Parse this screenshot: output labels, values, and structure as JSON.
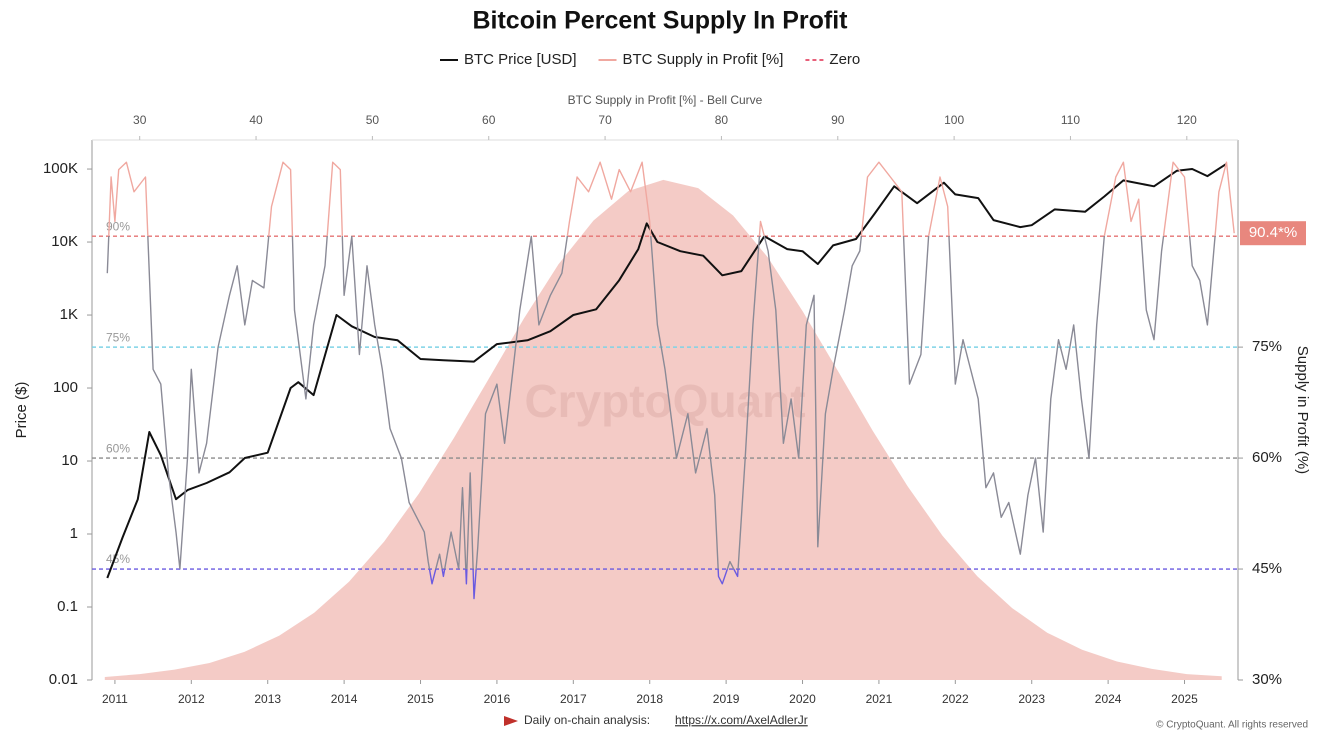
{
  "chart_data": {
    "type": "line",
    "title": "Bitcoin Percent Supply In Profit",
    "top_axis_title": "BTC Supply in Profit [%] - Bell Curve",
    "y_label": "Price ($)",
    "y2_label": "Supply in Profit (%)",
    "watermark": "CryptoQuant",
    "footer_text": "Daily on-chain analysis:",
    "footer_link": "https://x.com/AxelAdlerJr",
    "copyright": "© CryptoQuant. All rights reserved",
    "xlim": [
      2010.7,
      2025.7
    ],
    "xticks": [
      2011,
      2012,
      2013,
      2014,
      2015,
      2016,
      2017,
      2018,
      2019,
      2020,
      2021,
      2022,
      2023,
      2024,
      2025
    ],
    "top_xlim": [
      25.9,
      124.4
    ],
    "top_xticks": [
      30,
      40,
      50,
      60,
      70,
      80,
      90,
      100,
      110,
      120
    ],
    "log_y": true,
    "ylim": [
      0.01,
      250000
    ],
    "yticks": [
      0.01,
      0.1,
      1,
      10,
      100,
      {
        "value": 1000,
        "label": "1K"
      },
      {
        "value": 10000,
        "label": "10K"
      },
      {
        "value": 100000,
        "label": "100K"
      }
    ],
    "y2lim": [
      30,
      103
    ],
    "y2ticks": [
      {
        "value": 30,
        "label": "30%"
      },
      {
        "value": 45,
        "label": "45%"
      },
      {
        "value": 60,
        "label": "60%"
      },
      {
        "value": 75,
        "label": "75%"
      }
    ],
    "reference_lines": [
      {
        "value": 90,
        "label": "90%",
        "color": "#e57373"
      },
      {
        "value": 75,
        "label": "75%",
        "color": "#7fd3e6"
      },
      {
        "value": 60,
        "label": "60%",
        "color": "#8c8c8c"
      },
      {
        "value": 45,
        "label": "45%",
        "color": "#6a5ae0"
      }
    ],
    "current_value": {
      "value": 90.4,
      "label": "90.4*%",
      "color": "#e8877e"
    },
    "zero_line": {
      "name": "Zero",
      "color": "#e8607a"
    },
    "bell_curve": {
      "color": "#f2c2bc",
      "x": [
        27,
        30,
        33,
        36,
        39,
        42,
        45,
        48,
        51,
        54,
        57,
        60,
        63,
        66,
        69,
        72,
        75,
        78,
        81,
        84,
        87,
        90,
        93,
        96,
        99,
        102,
        105,
        108,
        111,
        114,
        117,
        120,
        123
      ],
      "values": [
        30.4,
        30.8,
        31.4,
        32.3,
        33.8,
        36.0,
        39.1,
        43.3,
        48.7,
        55.2,
        62.7,
        70.7,
        78.8,
        86.2,
        92.1,
        96.1,
        97.6,
        96.5,
        92.8,
        87.1,
        79.8,
        71.8,
        63.7,
        56.2,
        49.5,
        44.0,
        39.7,
        36.4,
        34.1,
        32.5,
        31.5,
        30.8,
        30.5
      ]
    },
    "series": [
      {
        "name": "BTC Price [USD]",
        "color": "#111111",
        "x": [
          2010.9,
          2011.1,
          2011.3,
          2011.45,
          2011.6,
          2011.8,
          2011.95,
          2012.2,
          2012.5,
          2012.7,
          2013.0,
          2013.3,
          2013.4,
          2013.6,
          2013.9,
          2014.1,
          2014.4,
          2014.7,
          2015.0,
          2015.3,
          2015.7,
          2016.0,
          2016.4,
          2016.7,
          2017.0,
          2017.3,
          2017.6,
          2017.85,
          2017.96,
          2018.1,
          2018.4,
          2018.7,
          2018.95,
          2019.2,
          2019.5,
          2019.8,
          2020.0,
          2020.2,
          2020.4,
          2020.7,
          2020.95,
          2021.2,
          2021.5,
          2021.85,
          2022.0,
          2022.3,
          2022.5,
          2022.85,
          2023.0,
          2023.3,
          2023.7,
          2023.95,
          2024.2,
          2024.6,
          2024.9,
          2025.1,
          2025.3,
          2025.55
        ],
        "values": [
          0.25,
          0.9,
          3,
          25,
          12,
          3,
          4,
          5,
          7,
          11,
          13,
          100,
          120,
          80,
          1000,
          700,
          500,
          450,
          250,
          240,
          230,
          400,
          450,
          600,
          1000,
          1200,
          3000,
          8000,
          18000,
          10000,
          7500,
          6500,
          3500,
          4000,
          12000,
          8000,
          7500,
          5000,
          9000,
          11000,
          25000,
          58000,
          34000,
          65000,
          45000,
          40000,
          20000,
          16000,
          17000,
          28000,
          26000,
          42000,
          70000,
          58000,
          95000,
          100000,
          80000,
          118000
        ]
      },
      {
        "name": "BTC Supply in Profit [%]",
        "color": "#f0a8a0",
        "mid_color": "#8a8a96",
        "low_color": "#6a5ae0",
        "axis": "y2",
        "x": [
          2010.9,
          2010.95,
          2011.0,
          2011.05,
          2011.15,
          2011.25,
          2011.4,
          2011.5,
          2011.6,
          2011.7,
          2011.8,
          2011.85,
          2011.95,
          2012.0,
          2012.1,
          2012.2,
          2012.35,
          2012.5,
          2012.6,
          2012.7,
          2012.8,
          2012.95,
          2013.05,
          2013.2,
          2013.3,
          2013.35,
          2013.5,
          2013.6,
          2013.75,
          2013.85,
          2013.95,
          2014.0,
          2014.1,
          2014.2,
          2014.3,
          2014.4,
          2014.5,
          2014.6,
          2014.75,
          2014.85,
          2014.95,
          2015.05,
          2015.1,
          2015.15,
          2015.25,
          2015.3,
          2015.4,
          2015.5,
          2015.55,
          2015.6,
          2015.65,
          2015.7,
          2015.75,
          2015.85,
          2016.0,
          2016.1,
          2016.3,
          2016.45,
          2016.55,
          2016.7,
          2016.85,
          2016.95,
          2017.05,
          2017.2,
          2017.35,
          2017.5,
          2017.6,
          2017.75,
          2017.9,
          2018.0,
          2018.1,
          2018.2,
          2018.35,
          2018.5,
          2018.6,
          2018.75,
          2018.85,
          2018.9,
          2018.95,
          2019.05,
          2019.15,
          2019.25,
          2019.35,
          2019.45,
          2019.55,
          2019.65,
          2019.75,
          2019.85,
          2019.95,
          2020.05,
          2020.15,
          2020.2,
          2020.3,
          2020.4,
          2020.55,
          2020.65,
          2020.75,
          2020.85,
          2021.0,
          2021.15,
          2021.3,
          2021.4,
          2021.55,
          2021.65,
          2021.8,
          2021.9,
          2022.0,
          2022.1,
          2022.2,
          2022.3,
          2022.4,
          2022.5,
          2022.6,
          2022.7,
          2022.85,
          2022.95,
          2023.05,
          2023.15,
          2023.25,
          2023.35,
          2023.45,
          2023.55,
          2023.65,
          2023.75,
          2023.85,
          2023.95,
          2024.1,
          2024.2,
          2024.3,
          2024.4,
          2024.5,
          2024.6,
          2024.7,
          2024.85,
          2025.0,
          2025.1,
          2025.2,
          2025.3,
          2025.45,
          2025.55,
          2025.65
        ],
        "values": [
          85,
          98,
          92,
          99,
          100,
          96,
          98,
          72,
          70,
          58,
          50,
          45,
          60,
          72,
          58,
          62,
          75,
          82,
          86,
          78,
          84,
          83,
          94,
          100,
          99,
          80,
          68,
          78,
          86,
          100,
          99,
          82,
          90,
          74,
          86,
          78,
          72,
          64,
          60,
          54,
          52,
          50,
          46,
          43,
          47,
          44,
          50,
          45,
          56,
          43,
          58,
          41,
          48,
          66,
          70,
          62,
          80,
          90,
          78,
          82,
          85,
          92,
          98,
          96,
          100,
          95,
          99,
          96,
          100,
          92,
          78,
          72,
          60,
          66,
          58,
          64,
          55,
          44,
          43,
          46,
          44,
          60,
          78,
          92,
          88,
          80,
          62,
          68,
          60,
          78,
          82,
          48,
          66,
          72,
          80,
          86,
          88,
          98,
          100,
          98,
          96,
          70,
          74,
          90,
          98,
          94,
          70,
          76,
          72,
          68,
          56,
          58,
          52,
          54,
          47,
          55,
          60,
          50,
          68,
          76,
          72,
          78,
          68,
          60,
          78,
          90,
          98,
          100,
          92,
          95,
          80,
          76,
          88,
          100,
          98,
          86,
          84,
          78,
          96,
          100,
          90.4
        ]
      }
    ]
  }
}
